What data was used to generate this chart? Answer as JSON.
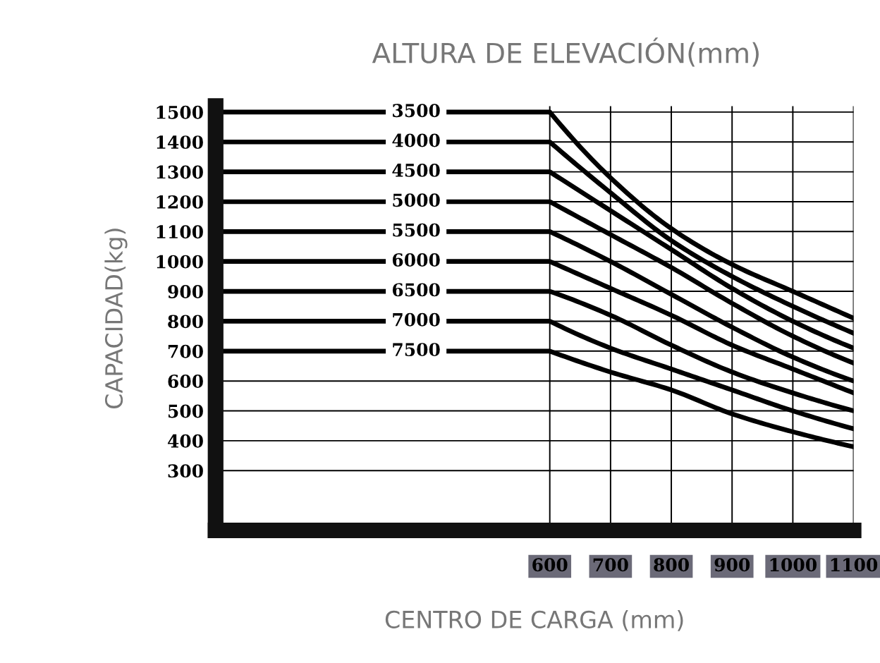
{
  "chart_data": {
    "type": "line",
    "title": "ALTURA DE ELEVACIÓN(mm)",
    "xlabel": "CENTRO DE CARGA (mm)",
    "ylabel": "CAPACIDAD(kg)",
    "xlim": [
      50,
      1100
    ],
    "ylim": [
      100,
      1520
    ],
    "xticks": [
      600,
      700,
      800,
      900,
      1000,
      1100
    ],
    "yticks": [
      300,
      400,
      500,
      600,
      700,
      800,
      900,
      1000,
      1100,
      1200,
      1300,
      1400,
      1500
    ],
    "grid": true,
    "legend": false,
    "marker": "none",
    "line_style": "solid",
    "x": [
      50,
      600,
      700,
      800,
      900,
      1000,
      1100
    ],
    "series": [
      {
        "name": "3500",
        "color": "#000000",
        "values": [
          1500,
          1500,
          1280,
          1110,
          990,
          900,
          810
        ]
      },
      {
        "name": "4000",
        "color": "#000000",
        "values": [
          1400,
          1400,
          1230,
          1070,
          950,
          850,
          760
        ]
      },
      {
        "name": "4500",
        "color": "#000000",
        "values": [
          1300,
          1300,
          1170,
          1040,
          910,
          800,
          710
        ]
      },
      {
        "name": "5000",
        "color": "#000000",
        "values": [
          1200,
          1200,
          1090,
          980,
          860,
          750,
          660
        ]
      },
      {
        "name": "5500",
        "color": "#000000",
        "values": [
          1100,
          1100,
          1000,
          890,
          780,
          680,
          600
        ]
      },
      {
        "name": "6000",
        "color": "#000000",
        "values": [
          1000,
          1000,
          910,
          820,
          720,
          640,
          560
        ]
      },
      {
        "name": "6500",
        "color": "#000000",
        "values": [
          900,
          900,
          820,
          720,
          630,
          560,
          500
        ]
      },
      {
        "name": "7000",
        "color": "#000000",
        "values": [
          800,
          800,
          710,
          640,
          570,
          500,
          440
        ]
      },
      {
        "name": "7500",
        "color": "#000000",
        "values": [
          700,
          700,
          630,
          570,
          490,
          430,
          380
        ]
      }
    ]
  }
}
